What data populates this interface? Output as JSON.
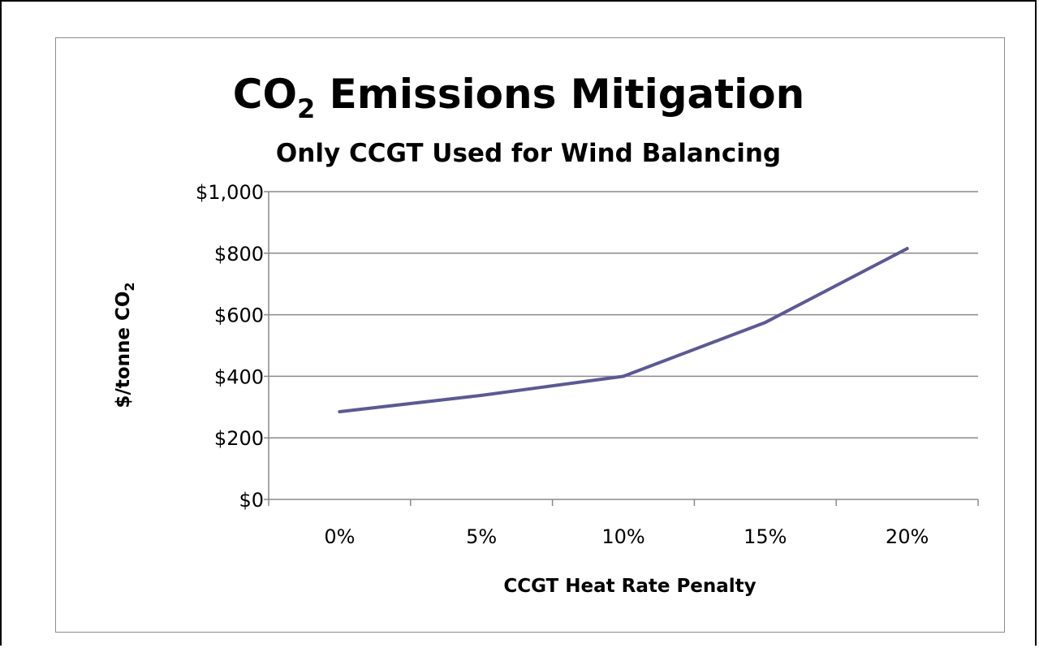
{
  "chart_data": {
    "type": "line",
    "title_main": "CO",
    "title_sub_script": "2",
    "title_rest": " Emissions Mitigation",
    "subtitle": "Only CCGT Used for Wind Balancing",
    "xlabel": "CCGT Heat Rate Penalty",
    "ylabel_main": "$/tonne CO",
    "ylabel_sub": "2",
    "categories": [
      "0%",
      "5%",
      "10%",
      "15%",
      "20%"
    ],
    "y_tick_labels": [
      "$0",
      "$200",
      "$400",
      "$600",
      "$800",
      "$1,000"
    ],
    "y_tick_values": [
      0,
      200,
      400,
      600,
      800,
      1000
    ],
    "ylim": [
      0,
      1000
    ],
    "grid": true,
    "series": [
      {
        "values": [
          285,
          338,
          400,
          575,
          815
        ],
        "color": "#5b5a92"
      }
    ]
  }
}
